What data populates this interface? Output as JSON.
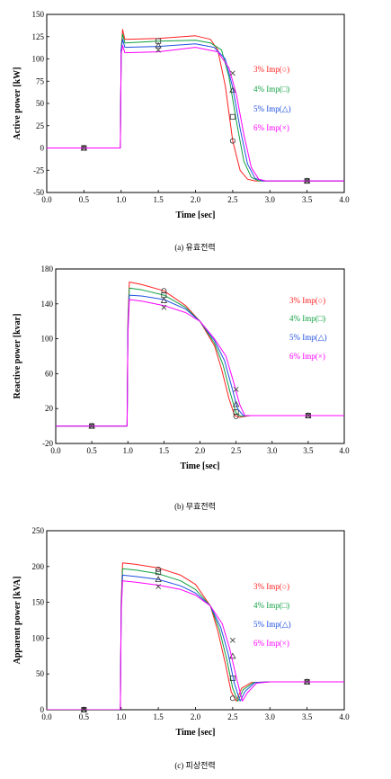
{
  "colors": {
    "s3": "#ff2020",
    "s4": "#10a040",
    "s5": "#2050e0",
    "s6": "#ff00ff",
    "axis": "#000000"
  },
  "chart_data": [
    {
      "type": "line",
      "caption": "(a) 유효전력",
      "xlabel": "Time [sec]",
      "ylabel": "Active power [kW]",
      "xlim": [
        0,
        4
      ],
      "ylim": [
        -50,
        150
      ],
      "xticks": [
        "0.0",
        "0.5",
        "1.0",
        "1.5",
        "2.0",
        "2.5",
        "3.0",
        "3.5",
        "4.0"
      ],
      "yticks": [
        "150",
        "125",
        "100",
        "75",
        "50",
        "25",
        "0",
        "-25",
        "-50"
      ],
      "legend": [
        "3% Imp(○)",
        "4% Imp(□)",
        "5% Imp(△)",
        "6% Imp(×)"
      ],
      "series": [
        {
          "name": "3% Imp(○)",
          "color": "#ff2020",
          "marker": "circle",
          "x": [
            0,
            0.99,
            1.0,
            1.02,
            1.05,
            1.5,
            2.0,
            2.2,
            2.3,
            2.4,
            2.5,
            2.6,
            2.7,
            2.8,
            3.0,
            4.0
          ],
          "y": [
            0,
            0,
            110,
            133,
            122,
            123,
            126,
            122,
            110,
            70,
            8,
            -25,
            -35,
            -37,
            -37,
            -37
          ],
          "marks": [
            [
              0.5,
              0
            ],
            [
              2.5,
              8
            ],
            [
              3.5,
              -37
            ]
          ]
        },
        {
          "name": "4% Imp(□)",
          "color": "#10a040",
          "marker": "square",
          "x": [
            0,
            0.99,
            1.0,
            1.02,
            1.05,
            1.5,
            2.0,
            2.2,
            2.35,
            2.45,
            2.55,
            2.65,
            2.75,
            2.85,
            3.0,
            4.0
          ],
          "y": [
            0,
            0,
            110,
            128,
            118,
            120,
            121,
            118,
            110,
            80,
            30,
            -15,
            -33,
            -37,
            -37,
            -37
          ],
          "marks": [
            [
              0.5,
              0
            ],
            [
              1.5,
              120
            ],
            [
              2.5,
              35
            ],
            [
              3.5,
              -37
            ]
          ]
        },
        {
          "name": "5% Imp(△)",
          "color": "#2050e0",
          "marker": "triangle",
          "x": [
            0,
            0.99,
            1.0,
            1.02,
            1.05,
            1.5,
            2.0,
            2.25,
            2.4,
            2.5,
            2.6,
            2.7,
            2.8,
            2.9,
            3.0,
            4.0
          ],
          "y": [
            0,
            0,
            110,
            122,
            113,
            114,
            117,
            113,
            100,
            68,
            22,
            -18,
            -34,
            -37,
            -37,
            -37
          ],
          "marks": [
            [
              0.5,
              0
            ],
            [
              1.5,
              115
            ],
            [
              2.5,
              65
            ],
            [
              3.5,
              -37
            ]
          ]
        },
        {
          "name": "6% Imp(×)",
          "color": "#ff00ff",
          "marker": "x",
          "x": [
            0,
            0.99,
            1.0,
            1.02,
            1.05,
            1.5,
            2.0,
            2.3,
            2.45,
            2.55,
            2.65,
            2.75,
            2.85,
            2.95,
            3.0,
            4.0
          ],
          "y": [
            0,
            0,
            105,
            115,
            107,
            108,
            113,
            108,
            90,
            60,
            15,
            -22,
            -35,
            -37,
            -37,
            -37
          ],
          "marks": [
            [
              0.5,
              0
            ],
            [
              1.5,
              110
            ],
            [
              2.5,
              84
            ],
            [
              3.5,
              -37
            ]
          ]
        }
      ]
    },
    {
      "type": "line",
      "caption": "(b) 무효전력",
      "xlabel": "Time [sec]",
      "ylabel": "Reactive power [kvar]",
      "xlim": [
        0,
        4
      ],
      "ylim": [
        -20,
        180
      ],
      "xticks": [
        "0.0",
        "0.5",
        "1.0",
        "1.5",
        "2.0",
        "2.5",
        "3.0",
        "3.5",
        "4.0"
      ],
      "yticks": [
        "180",
        "140",
        "100",
        "60",
        "20",
        "-20"
      ],
      "legend": [
        "3% Imp(○)",
        "4% Imp(□)",
        "5% Imp(△)",
        "6% Imp(×)"
      ],
      "series": [
        {
          "name": "3% Imp(○)",
          "color": "#ff2020",
          "marker": "circle",
          "x": [
            0,
            0.99,
            1.0,
            1.02,
            1.2,
            1.5,
            1.8,
            2.0,
            2.2,
            2.3,
            2.4,
            2.48,
            2.55,
            2.7,
            3.0,
            4.0
          ],
          "y": [
            0,
            0,
            120,
            165,
            162,
            155,
            138,
            120,
            92,
            65,
            32,
            12,
            10,
            12,
            12,
            12
          ],
          "marks": [
            [
              0.5,
              0
            ],
            [
              1.5,
              155
            ],
            [
              2.5,
              11
            ],
            [
              3.5,
              12
            ]
          ]
        },
        {
          "name": "4% Imp(□)",
          "color": "#10a040",
          "marker": "square",
          "x": [
            0,
            0.99,
            1.0,
            1.02,
            1.2,
            1.5,
            1.8,
            2.0,
            2.2,
            2.32,
            2.42,
            2.5,
            2.57,
            2.7,
            3.0,
            4.0
          ],
          "y": [
            0,
            0,
            115,
            158,
            156,
            150,
            136,
            120,
            95,
            70,
            38,
            15,
            11,
            12,
            12,
            12
          ],
          "marks": [
            [
              0.5,
              0
            ],
            [
              1.5,
              150
            ],
            [
              2.5,
              16
            ],
            [
              3.5,
              12
            ]
          ]
        },
        {
          "name": "5% Imp(△)",
          "color": "#2050e0",
          "marker": "triangle",
          "x": [
            0,
            0.99,
            1.0,
            1.02,
            1.2,
            1.5,
            1.8,
            2.0,
            2.2,
            2.34,
            2.44,
            2.52,
            2.6,
            2.7,
            3.0,
            4.0
          ],
          "y": [
            0,
            0,
            110,
            150,
            149,
            145,
            134,
            120,
            98,
            75,
            45,
            20,
            12,
            12,
            12,
            12
          ],
          "marks": [
            [
              0.5,
              0
            ],
            [
              1.5,
              144
            ],
            [
              2.5,
              25
            ],
            [
              3.5,
              12
            ]
          ]
        },
        {
          "name": "6% Imp(×)",
          "color": "#ff00ff",
          "marker": "x",
          "x": [
            0,
            0.99,
            1.0,
            1.02,
            1.2,
            1.5,
            1.8,
            2.0,
            2.2,
            2.36,
            2.46,
            2.55,
            2.62,
            2.7,
            3.0,
            4.0
          ],
          "y": [
            0,
            0,
            105,
            145,
            143,
            138,
            130,
            120,
            100,
            80,
            52,
            25,
            12,
            12,
            12,
            12
          ],
          "marks": [
            [
              0.5,
              0
            ],
            [
              1.5,
              136
            ],
            [
              2.5,
              42
            ],
            [
              3.5,
              12
            ]
          ]
        }
      ]
    },
    {
      "type": "line",
      "caption": "(c) 피상전력",
      "xlabel": "Time [sec]",
      "ylabel": "Apparent power [kVA]",
      "xlim": [
        0,
        4
      ],
      "ylim": [
        0,
        250
      ],
      "xticks": [
        "0.0",
        "0.5",
        "1.0",
        "1.5",
        "2.0",
        "2.5",
        "3.0",
        "3.5",
        "4.0"
      ],
      "yticks": [
        "250",
        "200",
        "150",
        "100",
        "50",
        "0"
      ],
      "legend": [
        "3% Imp(○)",
        "4% Imp(□)",
        "5% Imp(△)",
        "6% Imp(×)"
      ],
      "series": [
        {
          "name": "3% Imp(○)",
          "color": "#ff2020",
          "marker": "circle",
          "x": [
            0,
            0.99,
            1.0,
            1.02,
            1.2,
            1.5,
            1.8,
            2.0,
            2.2,
            2.3,
            2.4,
            2.48,
            2.55,
            2.62,
            2.75,
            3.0,
            4.0
          ],
          "y": [
            0,
            0,
            150,
            205,
            203,
            198,
            188,
            175,
            145,
            110,
            65,
            25,
            12,
            30,
            38,
            39,
            39
          ],
          "marks": [
            [
              0.5,
              0
            ],
            [
              1.5,
              196
            ],
            [
              2.5,
              16
            ],
            [
              3.5,
              39
            ]
          ]
        },
        {
          "name": "4% Imp(□)",
          "color": "#10a040",
          "marker": "square",
          "x": [
            0,
            0.99,
            1.0,
            1.02,
            1.2,
            1.5,
            1.8,
            2.0,
            2.2,
            2.32,
            2.42,
            2.5,
            2.57,
            2.64,
            2.78,
            3.0,
            4.0
          ],
          "y": [
            0,
            0,
            145,
            197,
            195,
            190,
            180,
            168,
            145,
            112,
            70,
            30,
            12,
            28,
            38,
            39,
            39
          ],
          "marks": [
            [
              0.5,
              0
            ],
            [
              1.5,
              192
            ],
            [
              2.5,
              44
            ],
            [
              3.5,
              39
            ]
          ]
        },
        {
          "name": "5% Imp(△)",
          "color": "#2050e0",
          "marker": "triangle",
          "x": [
            0,
            0.99,
            1.0,
            1.02,
            1.2,
            1.5,
            1.8,
            2.0,
            2.2,
            2.34,
            2.44,
            2.52,
            2.6,
            2.67,
            2.8,
            3.0,
            4.0
          ],
          "y": [
            0,
            0,
            140,
            188,
            186,
            182,
            173,
            163,
            145,
            115,
            78,
            38,
            12,
            26,
            38,
            39,
            39
          ],
          "marks": [
            [
              0.5,
              0
            ],
            [
              1.5,
              182
            ],
            [
              2.5,
              75
            ],
            [
              3.5,
              39
            ]
          ]
        },
        {
          "name": "6% Imp(×)",
          "color": "#ff00ff",
          "marker": "x",
          "x": [
            0,
            0.99,
            1.0,
            1.02,
            1.2,
            1.5,
            1.8,
            2.0,
            2.2,
            2.36,
            2.46,
            2.55,
            2.63,
            2.7,
            2.82,
            3.0,
            4.0
          ],
          "y": [
            0,
            0,
            135,
            180,
            178,
            174,
            168,
            160,
            145,
            120,
            85,
            45,
            12,
            24,
            37,
            39,
            39
          ],
          "marks": [
            [
              0.5,
              0
            ],
            [
              1.5,
              172
            ],
            [
              2.5,
              97
            ],
            [
              3.5,
              39
            ]
          ]
        }
      ]
    }
  ]
}
